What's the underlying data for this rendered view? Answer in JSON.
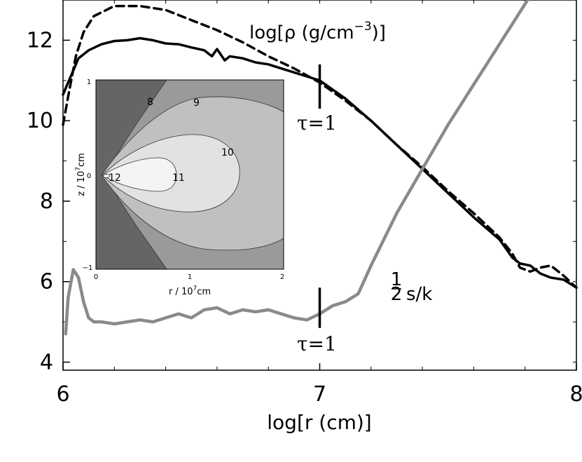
{
  "chart_data": [
    {
      "type": "line",
      "xlabel": "log[r (cm)]",
      "ylabel": "",
      "xlim": [
        6,
        8
      ],
      "ylim": [
        3.8,
        13
      ],
      "x_ticks": [
        6,
        7,
        8
      ],
      "x_tick_labels": [
        "6",
        "7",
        "8"
      ],
      "y_ticks": [
        4,
        6,
        8,
        10,
        12
      ],
      "y_tick_labels": [
        "4",
        "6",
        "8",
        "10",
        "12"
      ],
      "grid": false,
      "series": [
        {
          "style": "dashed",
          "color": "#000000",
          "x": [
            6.0,
            6.02,
            6.05,
            6.08,
            6.12,
            6.2,
            6.3,
            6.4,
            6.5,
            6.6,
            6.7,
            6.8,
            6.9,
            7.0,
            7.1,
            7.2,
            7.3,
            7.4,
            7.5,
            7.6,
            7.7,
            7.75,
            7.78,
            7.82,
            7.86,
            7.9,
            7.95,
            8.0
          ],
          "y": [
            9.9,
            10.6,
            11.6,
            12.2,
            12.6,
            12.85,
            12.85,
            12.75,
            12.5,
            12.25,
            11.95,
            11.6,
            11.3,
            10.95,
            10.5,
            10.0,
            9.4,
            8.85,
            8.25,
            7.7,
            7.1,
            6.7,
            6.35,
            6.25,
            6.35,
            6.4,
            6.15,
            5.85
          ]
        },
        {
          "style": "solid",
          "color": "#000000",
          "x": [
            6.0,
            6.03,
            6.06,
            6.1,
            6.15,
            6.2,
            6.25,
            6.3,
            6.35,
            6.4,
            6.45,
            6.5,
            6.55,
            6.58,
            6.6,
            6.63,
            6.65,
            6.7,
            6.75,
            6.8,
            6.85,
            6.9,
            6.95,
            7.0,
            7.1,
            7.2,
            7.3,
            7.4,
            7.5,
            7.6,
            7.7,
            7.75,
            7.78,
            7.82,
            7.86,
            7.9,
            7.95,
            8.0
          ],
          "y": [
            10.65,
            11.1,
            11.55,
            11.75,
            11.9,
            11.98,
            12.0,
            12.05,
            12.0,
            11.92,
            11.9,
            11.82,
            11.75,
            11.6,
            11.78,
            11.5,
            11.6,
            11.55,
            11.45,
            11.4,
            11.3,
            11.2,
            11.1,
            11.0,
            10.55,
            10.0,
            9.4,
            8.8,
            8.2,
            7.6,
            7.05,
            6.6,
            6.45,
            6.4,
            6.2,
            6.1,
            6.05,
            5.85
          ]
        },
        {
          "style": "solid",
          "color": "#8a8a8a",
          "x": [
            6.01,
            6.02,
            6.04,
            6.06,
            6.08,
            6.1,
            6.12,
            6.15,
            6.2,
            6.25,
            6.3,
            6.35,
            6.4,
            6.45,
            6.5,
            6.55,
            6.6,
            6.65,
            6.7,
            6.75,
            6.8,
            6.85,
            6.9,
            6.95,
            7.0,
            7.05,
            7.1,
            7.15,
            7.2,
            7.3,
            7.4,
            7.5,
            7.6,
            7.7,
            7.75,
            7.8,
            7.82
          ],
          "y": [
            4.7,
            5.6,
            6.3,
            6.1,
            5.5,
            5.1,
            5.0,
            5.0,
            4.95,
            5.0,
            5.05,
            5.0,
            5.1,
            5.2,
            5.1,
            5.3,
            5.35,
            5.2,
            5.3,
            5.25,
            5.3,
            5.2,
            5.1,
            5.05,
            5.2,
            5.4,
            5.5,
            5.7,
            6.4,
            7.7,
            8.8,
            9.9,
            10.9,
            11.9,
            12.4,
            12.9,
            13.1
          ]
        }
      ],
      "annotations": {
        "density_label": "log[ρ (g/cm",
        "density_exp": "−3",
        "density_close": ")]",
        "entropy_num": "1",
        "entropy_den": "2",
        "entropy_label": "s/k",
        "tau_label": "τ=1",
        "tau_markers": [
          {
            "x": 7.0,
            "y_from": 10.3,
            "y_to": 11.4
          },
          {
            "x": 7.0,
            "y_from": 4.85,
            "y_to": 5.85
          }
        ]
      }
    },
    {
      "type": "contour",
      "xlabel": "r / 10",
      "xlabel_exp": "7",
      "xlabel_unit": "cm",
      "ylabel": "z / 10",
      "ylabel_exp": "7",
      "ylabel_unit": "cm",
      "xlim": [
        0,
        2
      ],
      "ylim": [
        -1,
        1
      ],
      "x_tick_labels": [
        "0",
        "1",
        "2"
      ],
      "y_tick_labels": [
        "1",
        "0",
        "−1"
      ],
      "contour_labels": [
        "8",
        "9",
        "10",
        "11",
        "12"
      ],
      "fill_colors": [
        "#656565",
        "#9a9a9a",
        "#c0c0c0",
        "#e2e2e2",
        "#f4f4f4"
      ]
    }
  ]
}
